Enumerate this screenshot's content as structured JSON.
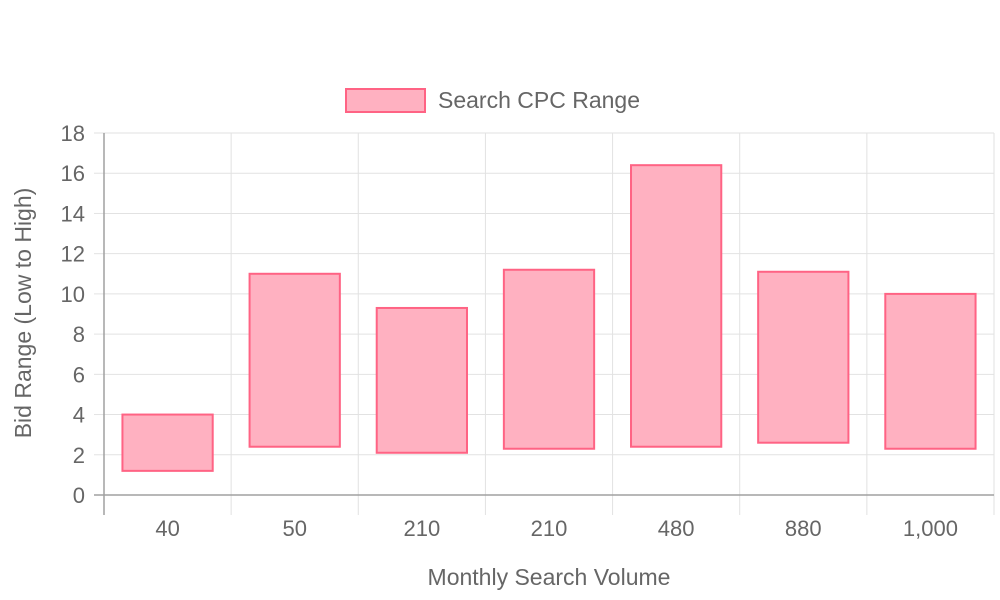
{
  "chart_data": {
    "type": "bar",
    "subtype": "floating-range",
    "categories": [
      "40",
      "50",
      "210",
      "210",
      "480",
      "880",
      "1,000"
    ],
    "series": [
      {
        "name": "Search CPC Range",
        "ranges": [
          [
            1.2,
            4.0
          ],
          [
            2.4,
            11.0
          ],
          [
            2.1,
            9.3
          ],
          [
            2.3,
            11.2
          ],
          [
            2.4,
            16.4
          ],
          [
            2.6,
            11.1
          ],
          [
            2.3,
            10.0
          ]
        ]
      }
    ],
    "xlabel": "Monthly Search Volume",
    "ylabel": "Bid Range (Low to High)",
    "ylim": [
      0,
      18
    ],
    "yticks": [
      "0",
      "2",
      "4",
      "6",
      "8",
      "10",
      "12",
      "14",
      "16",
      "18"
    ],
    "grid": true,
    "legend_position": "top-center",
    "colors": {
      "bar_fill": "#ffb1c1",
      "bar_border": "#ff6384"
    }
  }
}
